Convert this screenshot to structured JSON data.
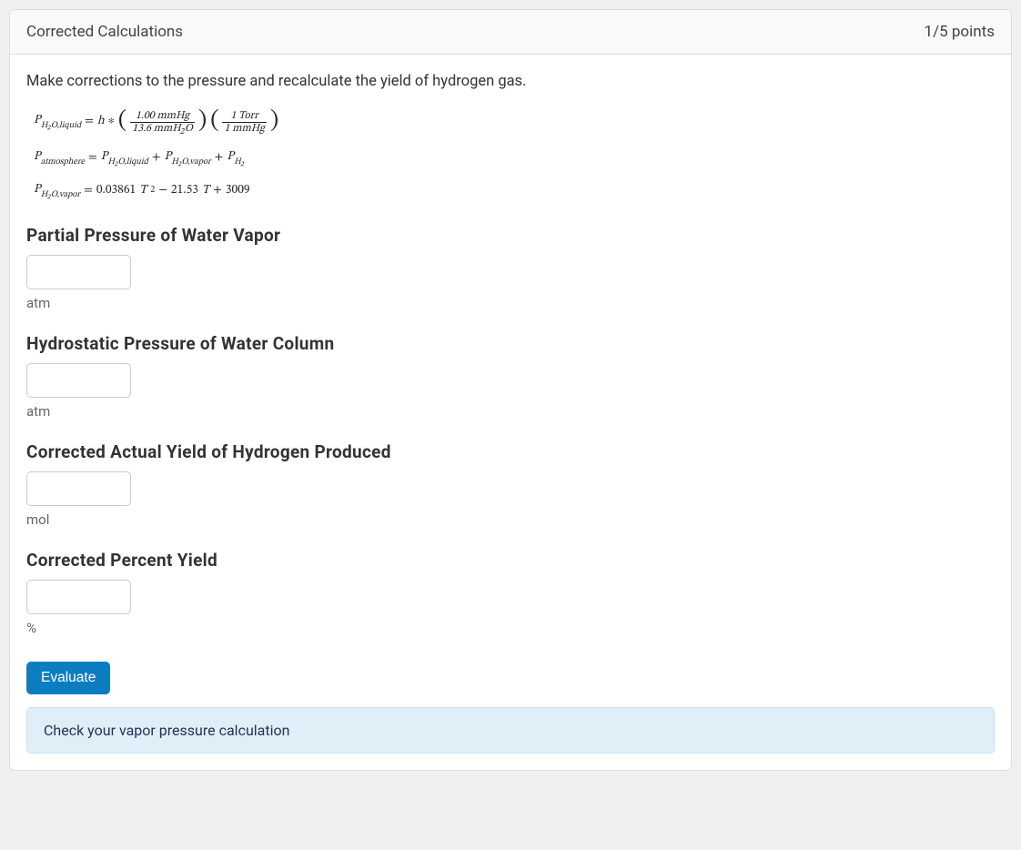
{
  "header": {
    "title": "Corrected Calculations",
    "points": "1/5 points"
  },
  "instruction": "Make corrections to the pressure and recalculate the yield of hydrogen gas.",
  "equations": {
    "eq1": {
      "lhs_var": "P",
      "lhs_sub": "H₂O,liquid",
      "eq": " = ",
      "h": "h",
      "star": " ∗ ",
      "frac1_num": "1.00 mmHg",
      "frac1_den": "13.6 mmH₂O",
      "frac2_num": "1 Torr",
      "frac2_den": "1 mmHg"
    },
    "eq2": {
      "lhs_var": "P",
      "lhs_sub": "atmosphere",
      "eq": " = ",
      "t1_var": "P",
      "t1_sub": "H₂O,liquid",
      "plus1": " + ",
      "t2_var": "P",
      "t2_sub": "H₂O,vapor",
      "plus2": " + ",
      "t3_var": "P",
      "t3_sub": "H₂"
    },
    "eq3": {
      "lhs_var": "P",
      "lhs_sub": "H₂O,vapor",
      "eq": " = ",
      "c1": "0.03861",
      "T": "T",
      "exp": "2",
      "minus": " − ",
      "c2": "21.53",
      "T2": "T",
      "plus": " + ",
      "c3": "3009"
    }
  },
  "fields": [
    {
      "label": "Partial Pressure of Water Vapor",
      "unit": "atm",
      "value": ""
    },
    {
      "label": "Hydrostatic Pressure of Water Column",
      "unit": "atm",
      "value": ""
    },
    {
      "label": "Corrected Actual Yield of Hydrogen Produced",
      "unit": "mol",
      "value": ""
    },
    {
      "label": "Corrected Percent Yield",
      "unit": "%",
      "value": ""
    }
  ],
  "button": "Evaluate",
  "alert": "Check your vapor pressure calculation"
}
